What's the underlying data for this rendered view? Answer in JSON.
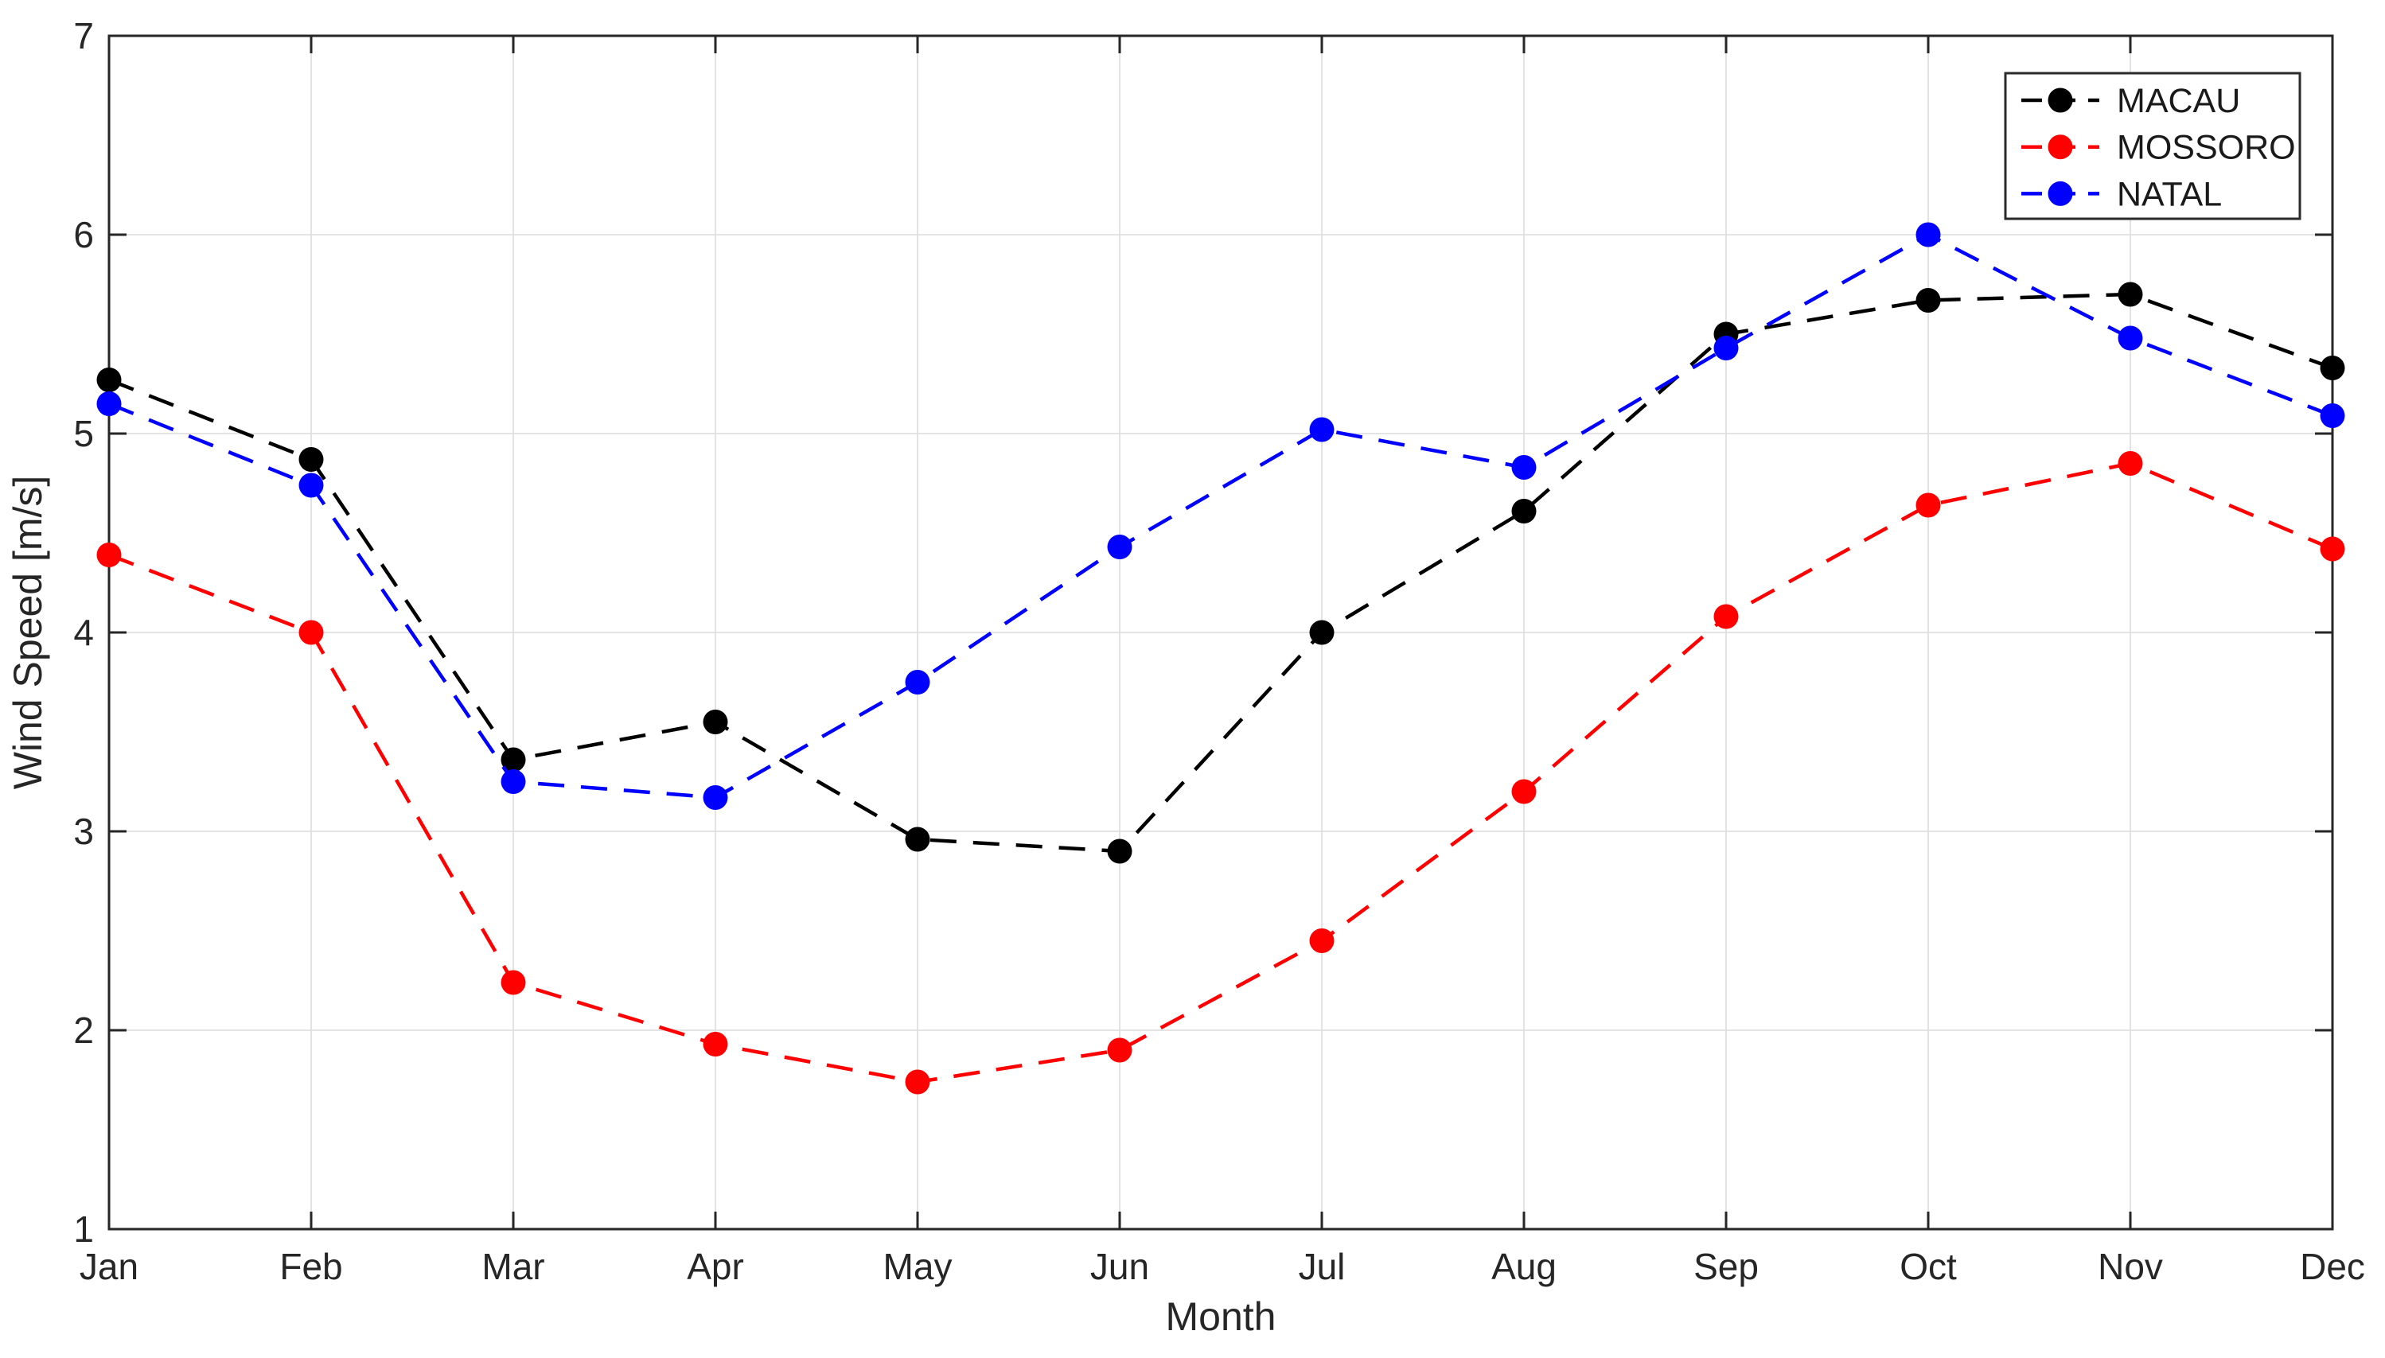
{
  "figure": {
    "background_color": "#ffffff",
    "axis_color": "#262626",
    "grid_color": "#dcdcdc",
    "tick_label_color": "#262626",
    "legend_border_color": "#2b2b2b",
    "legend_background": "#ffffff"
  },
  "chart_data": {
    "type": "line",
    "title": "",
    "xlabel": "Month",
    "ylabel": "Wind Speed [m/s]",
    "categories": [
      "Jan",
      "Feb",
      "Mar",
      "Apr",
      "May",
      "Jun",
      "Jul",
      "Aug",
      "Sep",
      "Oct",
      "Nov",
      "Dec"
    ],
    "ylim": [
      1,
      7
    ],
    "y_ticks": [
      1,
      2,
      3,
      4,
      5,
      6,
      7
    ],
    "grid": true,
    "box": true,
    "legend_position": "top-right",
    "line_style": "dashed",
    "marker": "circle",
    "series": [
      {
        "name": "MACAU",
        "color": "#000000",
        "values": [
          5.27,
          4.87,
          3.36,
          3.55,
          2.96,
          2.9,
          4.0,
          4.61,
          5.5,
          5.67,
          5.7,
          5.33
        ]
      },
      {
        "name": "MOSSORO",
        "color": "#ff0000",
        "values": [
          4.39,
          4.0,
          2.24,
          1.93,
          1.74,
          1.9,
          2.45,
          3.2,
          4.08,
          4.64,
          4.85,
          4.42
        ]
      },
      {
        "name": "NATAL",
        "color": "#0000ff",
        "values": [
          5.15,
          4.74,
          3.25,
          3.17,
          3.75,
          4.43,
          5.02,
          4.83,
          5.43,
          6.0,
          5.48,
          5.09
        ]
      }
    ]
  }
}
